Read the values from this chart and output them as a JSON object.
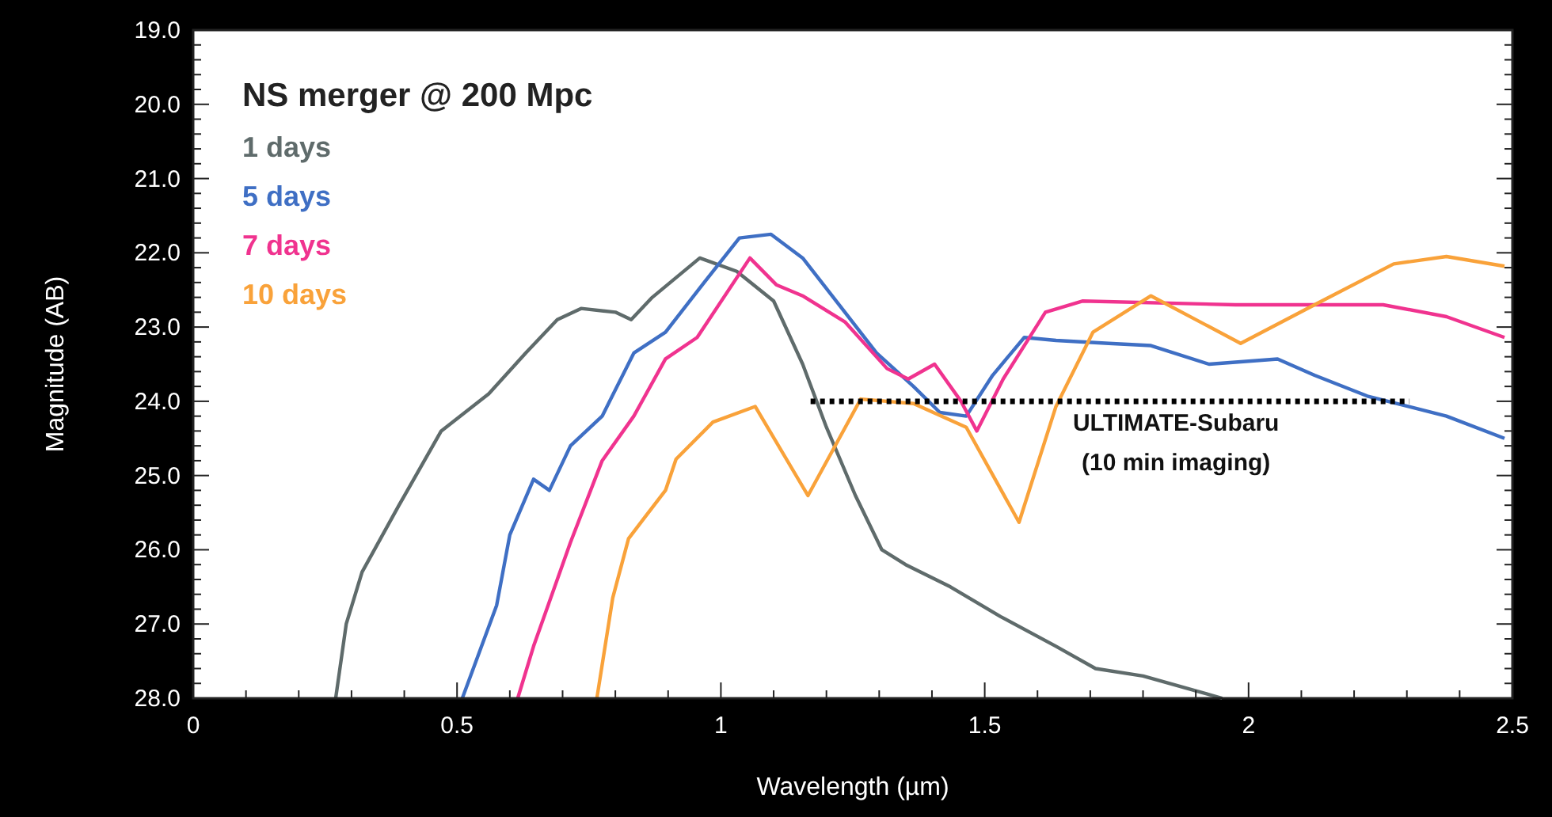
{
  "chart_data": {
    "type": "line",
    "title": "NS merger @ 200 Mpc",
    "xlabel": "Wavelength (µm)",
    "ylabel": "Magnitude (AB)",
    "xlim": [
      0,
      2.5
    ],
    "xticks": [
      0,
      0.5,
      1,
      1.5,
      2,
      2.5
    ],
    "ylim": [
      28,
      19
    ],
    "yticks": [
      {
        "value": 19,
        "label": "19.0"
      },
      {
        "value": 20,
        "label": "20.0"
      },
      {
        "value": 21,
        "label": "21.0"
      },
      {
        "value": 22,
        "label": "22.0"
      },
      {
        "value": 23,
        "label": "23.0"
      },
      {
        "value": 24,
        "label": "24.0"
      },
      {
        "value": 25,
        "label": "25.0"
      },
      {
        "value": 26,
        "label": "26.0"
      },
      {
        "value": 27,
        "label": "27.0"
      },
      {
        "value": 28,
        "label": "28.0"
      }
    ],
    "grid": false,
    "legend": "top left",
    "line_style": "solid",
    "marker": "none",
    "series": [
      {
        "name": "1 days",
        "color": "#5f6b6b",
        "x": [
          0.27,
          0.29,
          0.32,
          0.39,
          0.47,
          0.56,
          0.63,
          0.69,
          0.735,
          0.8,
          0.83,
          0.87,
          0.96,
          1.03,
          1.1,
          1.155,
          1.2,
          1.255,
          1.305,
          1.35,
          1.435,
          1.53,
          1.635,
          1.71,
          1.8,
          1.9,
          1.95
        ],
        "values": [
          28,
          27,
          26.3,
          25.4,
          24.4,
          23.9,
          23.35,
          22.9,
          22.75,
          22.8,
          22.9,
          22.6,
          22.07,
          22.25,
          22.65,
          23.5,
          24.35,
          25.27,
          26,
          26.2,
          26.5,
          26.9,
          27.3,
          27.6,
          27.7,
          27.9,
          28
        ]
      },
      {
        "name": "5 days",
        "color": "#3f6fc4",
        "x": [
          0.51,
          0.575,
          0.6,
          0.645,
          0.675,
          0.715,
          0.775,
          0.835,
          0.895,
          0.965,
          1.035,
          1.095,
          1.155,
          1.235,
          1.295,
          1.365,
          1.415,
          1.465,
          1.515,
          1.575,
          1.635,
          1.735,
          1.815,
          1.925,
          2.055,
          2.125,
          2.225,
          2.375,
          2.485
        ],
        "values": [
          28,
          26.75,
          25.8,
          25.05,
          25.2,
          24.6,
          24.2,
          23.35,
          23.07,
          22.43,
          21.8,
          21.75,
          22.07,
          22.8,
          23.35,
          23.8,
          24.15,
          24.2,
          23.65,
          23.14,
          23.18,
          23.22,
          23.25,
          23.5,
          23.43,
          23.65,
          23.93,
          24.2,
          24.5
        ]
      },
      {
        "name": "7 days",
        "color": "#f0338f",
        "x": [
          0.615,
          0.645,
          0.715,
          0.775,
          0.835,
          0.895,
          0.955,
          1.055,
          1.105,
          1.155,
          1.235,
          1.315,
          1.355,
          1.405,
          1.455,
          1.485,
          1.535,
          1.615,
          1.685,
          1.975,
          2.255,
          2.375,
          2.485
        ],
        "values": [
          28,
          27.3,
          25.9,
          24.8,
          24.2,
          23.43,
          23.14,
          22.07,
          22.43,
          22.58,
          22.93,
          23.56,
          23.7,
          23.5,
          24,
          24.4,
          23.7,
          22.8,
          22.65,
          22.7,
          22.7,
          22.86,
          23.14
        ]
      },
      {
        "name": "10 days",
        "color": "#f9a23a",
        "x": [
          0.765,
          0.795,
          0.825,
          0.855,
          0.895,
          0.915,
          0.985,
          1.065,
          1.165,
          1.265,
          1.365,
          1.465,
          1.565,
          1.635,
          1.705,
          1.815,
          1.985,
          2.125,
          2.275,
          2.375,
          2.485
        ],
        "values": [
          28,
          26.65,
          25.85,
          25.57,
          25.2,
          24.78,
          24.28,
          24.07,
          25.27,
          23.97,
          24.03,
          24.35,
          25.63,
          24.07,
          23.07,
          22.58,
          23.22,
          22.7,
          22.15,
          22.05,
          22.18
        ]
      },
      {
        "color": "#000000",
        "line_style": "dotted",
        "x": [
          1.17,
          2.305
        ],
        "values": [
          24,
          24
        ]
      }
    ],
    "annotations": [
      "ULTIMATE-Subaru\n(10 min imaging)"
    ]
  }
}
